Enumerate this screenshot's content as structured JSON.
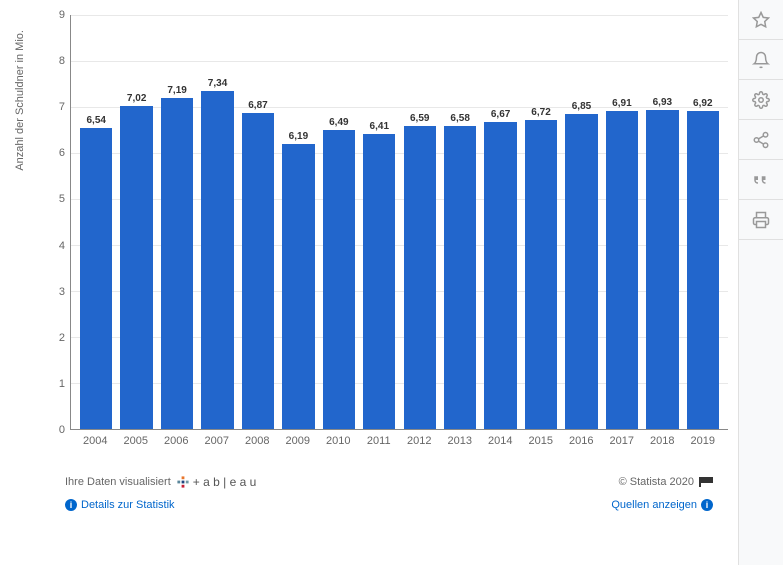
{
  "chart": {
    "type": "bar",
    "y_axis_label": "Anzahl der Schuldner in Mio.",
    "categories": [
      "2004",
      "2005",
      "2006",
      "2007",
      "2008",
      "2009",
      "2010",
      "2011",
      "2012",
      "2013",
      "2014",
      "2015",
      "2016",
      "2017",
      "2018",
      "2019"
    ],
    "values": [
      6.54,
      7.02,
      7.19,
      7.34,
      6.87,
      6.19,
      6.49,
      6.41,
      6.59,
      6.58,
      6.67,
      6.72,
      6.85,
      6.91,
      6.93,
      6.92
    ],
    "value_labels": [
      "6,54",
      "7,02",
      "7,19",
      "7,34",
      "6,87",
      "6,19",
      "6,49",
      "6,41",
      "6,59",
      "6,58",
      "6,67",
      "6,72",
      "6,85",
      "6,91",
      "6,93",
      "6,92"
    ],
    "bar_color": "#2266cc",
    "ylim": [
      0,
      9
    ],
    "ytick_step": 1,
    "yticks": [
      0,
      1,
      2,
      3,
      4,
      5,
      6,
      7,
      8,
      9
    ],
    "background_color": "#ffffff",
    "grid_color": "#e8e8e8",
    "axis_color": "#888888",
    "label_fontsize": 10,
    "tick_fontsize": 11,
    "bar_width": 0.8
  },
  "footer": {
    "visualized_text": "Ihre Daten visualisiert",
    "tableau_text": "+ a b | e a u",
    "copyright": "© Statista 2020",
    "details_link": "Details zur Statistik",
    "sources_link": "Quellen anzeigen"
  },
  "sidebar": {
    "icons": [
      "favorite",
      "notification",
      "settings",
      "share",
      "quote",
      "print"
    ]
  }
}
